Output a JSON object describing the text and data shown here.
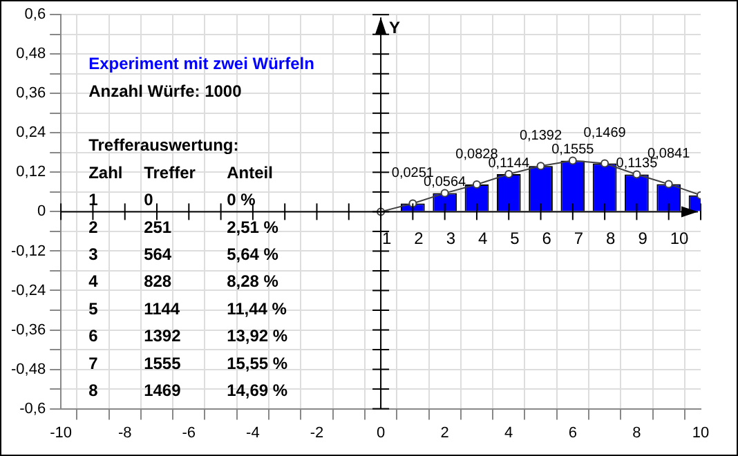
{
  "chart_data": {
    "type": "bar",
    "title": "Experiment mit zwei Würfeln",
    "subtitle": "Anzahl Würfe: 1000",
    "ylabel": "Y",
    "x": [
      0,
      1,
      2,
      3,
      4,
      5,
      6,
      7,
      8,
      9,
      10
    ],
    "series": [
      {
        "color": "#0000ff",
        "values": [
          0,
          0.0251,
          0.0564,
          0.0828,
          0.1144,
          0.1392,
          0.1555,
          0.1469,
          0.1135,
          0.0841,
          0.05
        ]
      },
      {
        "type": "line",
        "color": "#404040",
        "marker": "circle",
        "values": [
          0,
          0.0251,
          0.0564,
          0.0828,
          0.1144,
          0.1392,
          0.1555,
          0.1469,
          0.1135,
          0.0841,
          0.05
        ],
        "value_labels": [
          null,
          "0,0251",
          "0,0564",
          "0,0828",
          "0,1144",
          "0,1392",
          "0,1555",
          "0,1469",
          "0,1135",
          "0,0841",
          null
        ]
      }
    ],
    "xlim": [
      -10,
      10
    ],
    "xticks": [
      {
        "value": -10,
        "label": "-10"
      },
      {
        "value": -9,
        "label": null
      },
      {
        "value": -8,
        "label": "-8"
      },
      {
        "value": -7,
        "label": null
      },
      {
        "value": -6,
        "label": "-6"
      },
      {
        "value": -5,
        "label": null
      },
      {
        "value": -4,
        "label": "-4"
      },
      {
        "value": -3,
        "label": null
      },
      {
        "value": -2,
        "label": "-2"
      },
      {
        "value": -1,
        "label": null
      },
      0,
      {
        "value": 1,
        "label": null
      },
      2,
      {
        "value": 3,
        "label": null
      },
      4,
      {
        "value": 5,
        "label": null
      },
      6,
      {
        "value": 7,
        "label": null
      },
      8,
      {
        "value": 9,
        "label": null
      },
      10
    ],
    "ylim": [
      -0.6,
      0.6
    ],
    "yticks": [
      {
        "value": -0.6,
        "label": "-0,6"
      },
      {
        "value": -0.54,
        "label": null
      },
      {
        "value": -0.48,
        "label": "-0,48"
      },
      {
        "value": -0.42,
        "label": null
      },
      {
        "value": -0.36,
        "label": "-0,36"
      },
      {
        "value": -0.3,
        "label": null
      },
      {
        "value": -0.24,
        "label": "-0,24"
      },
      {
        "value": -0.18,
        "label": null
      },
      {
        "value": -0.12,
        "label": "-0,12"
      },
      {
        "value": -0.06,
        "label": null
      },
      0,
      {
        "value": 0.06,
        "label": null
      },
      {
        "value": 0.12,
        "label": "0,12"
      },
      {
        "value": 0.18,
        "label": null
      },
      {
        "value": 0.24,
        "label": "0,24"
      },
      {
        "value": 0.3,
        "label": null
      },
      {
        "value": 0.36,
        "label": "0,36"
      },
      {
        "value": 0.42,
        "label": null
      },
      {
        "value": 0.48,
        "label": "0,48"
      },
      {
        "value": 0.54,
        "label": null
      },
      {
        "value": 0.6,
        "label": "0,6"
      }
    ],
    "grid": true,
    "annotations": [
      {
        "text": "1",
        "x": 0,
        "y": 0
      },
      {
        "text": "2",
        "x": 1,
        "y": 0
      },
      {
        "text": "3",
        "x": 2,
        "y": 0
      },
      {
        "text": "4",
        "x": 3,
        "y": 0
      },
      {
        "text": "5",
        "x": 4,
        "y": 0
      },
      {
        "text": "6",
        "x": 5,
        "y": 0
      },
      {
        "text": "7",
        "x": 6,
        "y": 0
      },
      {
        "text": "8",
        "x": 7,
        "y": 0
      },
      {
        "text": "9",
        "x": 8,
        "y": 0
      },
      {
        "text": "10",
        "x": 9,
        "y": 0
      },
      "Trefferauswertung:",
      "Zahl",
      "Treffer",
      "Anteil",
      "1",
      "0",
      "0 %",
      "2",
      "251",
      "2,51 %",
      "3",
      "564",
      "5,64 %",
      "4",
      "828",
      "8,28 %",
      "5",
      "1144",
      "11,44 %",
      "6",
      "1392",
      "13,92 %",
      "7",
      "1555",
      "15,55 %",
      "8",
      "1469",
      "14,69 %"
    ]
  }
}
